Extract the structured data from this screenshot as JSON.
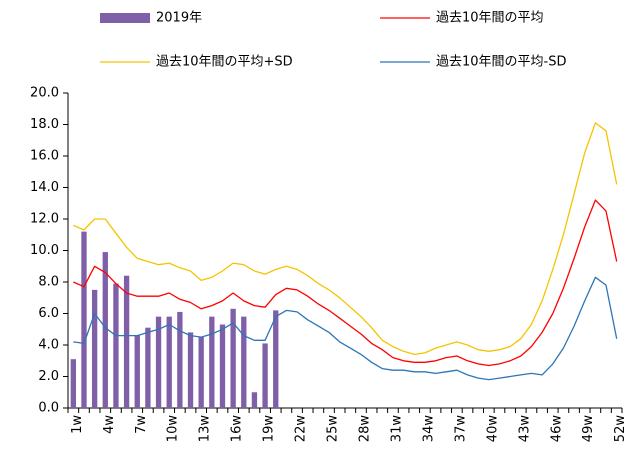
{
  "chart_data": {
    "type": "bar_line",
    "categories": [
      "1w",
      null,
      null,
      "4w",
      null,
      null,
      "7w",
      null,
      null,
      "10w",
      null,
      null,
      "13w",
      null,
      null,
      "16w",
      null,
      null,
      "19w",
      null,
      null,
      "22w",
      null,
      null,
      "25w",
      null,
      null,
      "28w",
      null,
      null,
      "31w",
      null,
      null,
      "34w",
      null,
      null,
      "37w",
      null,
      null,
      "40w",
      null,
      null,
      "43w",
      null,
      null,
      "46w",
      null,
      null,
      "49w",
      null,
      null,
      "52w"
    ],
    "series": [
      {
        "name": "2019年",
        "type": "bar",
        "color": "#7f60a8",
        "values": [
          3.1,
          11.2,
          7.5,
          9.9,
          7.9,
          8.4,
          4.6,
          5.1,
          5.8,
          5.8,
          6.1,
          4.8,
          4.5,
          5.8,
          5.3,
          6.3,
          5.8,
          1.0,
          4.1,
          6.2,
          null,
          null,
          null,
          null,
          null,
          null,
          null,
          null,
          null,
          null,
          null,
          null,
          null,
          null,
          null,
          null,
          null,
          null,
          null,
          null,
          null,
          null,
          null,
          null,
          null,
          null,
          null,
          null,
          null,
          null,
          null,
          null
        ]
      },
      {
        "name": "過去10年間の平均",
        "type": "line",
        "color": "#ff0000",
        "values": [
          8.0,
          7.7,
          9.0,
          8.6,
          7.9,
          7.3,
          7.1,
          7.1,
          7.1,
          7.3,
          6.9,
          6.7,
          6.3,
          6.5,
          6.8,
          7.3,
          6.8,
          6.5,
          6.4,
          7.2,
          7.6,
          7.5,
          7.1,
          6.6,
          6.2,
          5.7,
          5.2,
          4.7,
          4.1,
          3.7,
          3.2,
          3.0,
          2.9,
          2.9,
          3.0,
          3.2,
          3.3,
          3.0,
          2.8,
          2.7,
          2.8,
          3.0,
          3.3,
          3.9,
          4.8,
          6.0,
          7.6,
          9.5,
          11.5,
          13.2,
          12.5,
          9.3
        ]
      },
      {
        "name": "過去10年間の平均+SD",
        "type": "line",
        "color": "#f5c400",
        "values": [
          11.6,
          11.3,
          12.0,
          12.0,
          11.1,
          10.2,
          9.5,
          9.3,
          9.1,
          9.2,
          8.9,
          8.7,
          8.1,
          8.3,
          8.7,
          9.2,
          9.1,
          8.7,
          8.5,
          8.8,
          9.0,
          8.8,
          8.4,
          7.9,
          7.5,
          7.0,
          6.4,
          5.8,
          5.1,
          4.3,
          3.9,
          3.6,
          3.4,
          3.5,
          3.8,
          4.0,
          4.2,
          4.0,
          3.7,
          3.6,
          3.7,
          3.9,
          4.4,
          5.3,
          6.8,
          8.8,
          11.0,
          13.6,
          16.2,
          18.1,
          17.6,
          14.2
        ]
      },
      {
        "name": "過去10年間の平均-SD",
        "type": "line",
        "color": "#2e75b6",
        "values": [
          4.2,
          4.1,
          6.0,
          5.1,
          4.6,
          4.6,
          4.6,
          4.8,
          5.0,
          5.3,
          4.9,
          4.6,
          4.5,
          4.7,
          5.0,
          5.4,
          4.6,
          4.3,
          4.3,
          5.8,
          6.2,
          6.1,
          5.6,
          5.2,
          4.8,
          4.2,
          3.8,
          3.4,
          2.9,
          2.5,
          2.4,
          2.4,
          2.3,
          2.3,
          2.2,
          2.3,
          2.4,
          2.1,
          1.9,
          1.8,
          1.9,
          2.0,
          2.1,
          2.2,
          2.1,
          2.8,
          3.8,
          5.2,
          6.8,
          8.3,
          7.8,
          4.4
        ]
      }
    ],
    "ylim": [
      0,
      20
    ],
    "yticks": [
      {
        "value": 0,
        "label": "0.0"
      },
      {
        "value": 2,
        "label": "2.0"
      },
      {
        "value": 4,
        "label": "4.0"
      },
      {
        "value": 6,
        "label": "6.0"
      },
      {
        "value": 8,
        "label": "8.0"
      },
      {
        "value": 10,
        "label": "10.0"
      },
      {
        "value": 12,
        "label": "12.0"
      },
      {
        "value": 14,
        "label": "14.0"
      },
      {
        "value": 16,
        "label": "16.0"
      },
      {
        "value": 18,
        "label": "18.0"
      },
      {
        "value": 20,
        "label": "20.0"
      }
    ],
    "grid": false
  }
}
